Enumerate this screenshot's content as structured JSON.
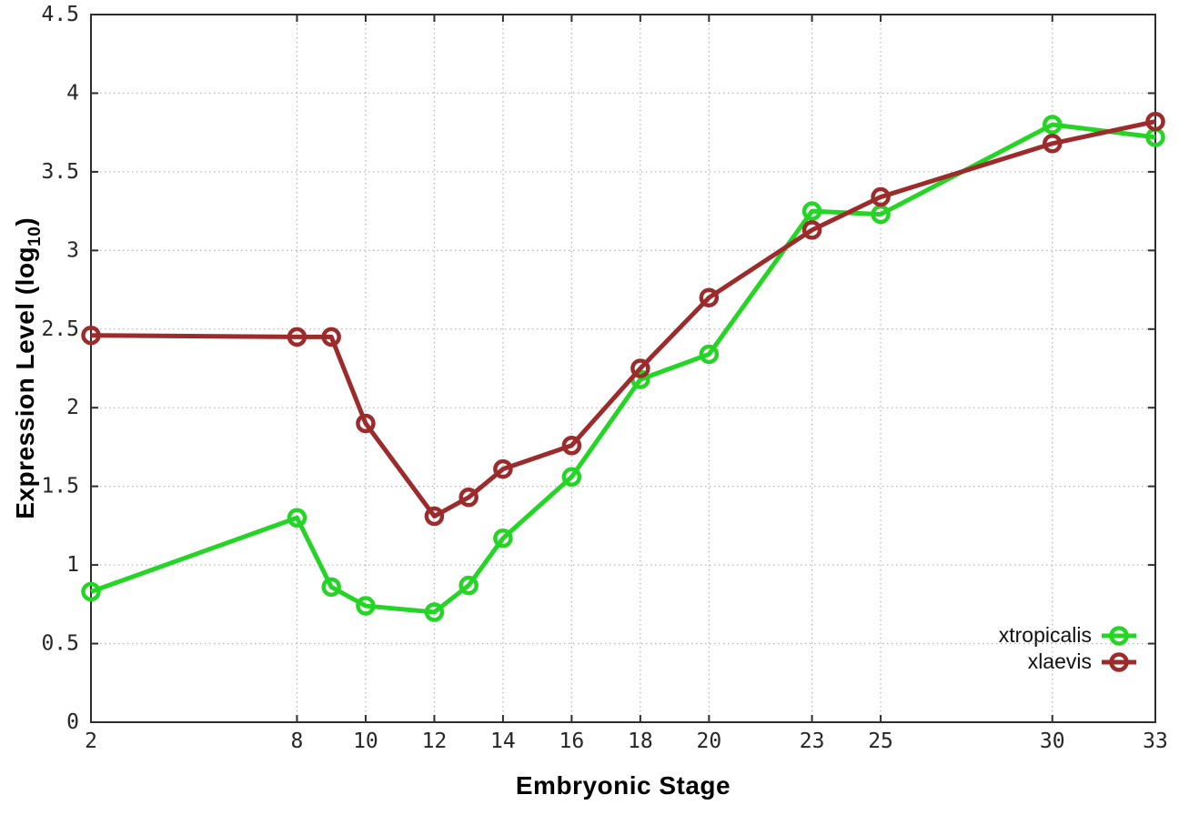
{
  "chart_data": {
    "type": "line",
    "title": "",
    "xlabel": "Embryonic Stage",
    "ylabel": "Expression Level (log10)",
    "ylabel_parts": {
      "main": "Expression Level (log",
      "sub": "10",
      "close": ")"
    },
    "xlim": [
      2,
      33
    ],
    "ylim": [
      0,
      4.5
    ],
    "x_ticks": [
      2,
      8,
      10,
      12,
      14,
      16,
      18,
      20,
      23,
      25,
      30,
      33
    ],
    "y_ticks": [
      0,
      0.5,
      1,
      1.5,
      2,
      2.5,
      3,
      3.5,
      4,
      4.5
    ],
    "grid": true,
    "grid_color": "#b9b9b9",
    "border_color": "#2e2e2e",
    "background": "#ffffff",
    "legend_position": "bottom-right",
    "x": [
      2,
      8,
      9,
      10,
      12,
      13,
      14,
      16,
      18,
      20,
      23,
      25,
      30,
      33
    ],
    "series": [
      {
        "name": "xtropicalis",
        "color": "#25d525",
        "marker": "open-circle",
        "values": [
          0.83,
          1.3,
          0.86,
          0.74,
          0.7,
          0.87,
          1.17,
          1.56,
          2.18,
          2.34,
          3.25,
          3.23,
          3.8,
          3.72
        ]
      },
      {
        "name": "xlaevis",
        "color": "#9c2b2b",
        "marker": "open-circle",
        "values": [
          2.46,
          2.45,
          2.45,
          1.9,
          1.31,
          1.43,
          1.61,
          1.76,
          2.25,
          2.7,
          3.13,
          3.34,
          3.68,
          3.82
        ]
      }
    ]
  }
}
